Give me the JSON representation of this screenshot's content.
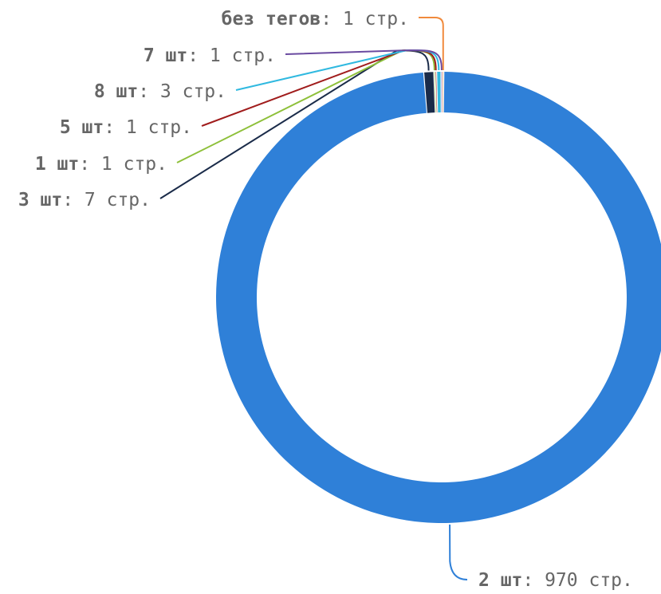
{
  "chart_data": {
    "type": "pie",
    "donut": true,
    "title": "",
    "legend": "none",
    "slices": [
      {
        "name": "2 шт",
        "value": 970,
        "label_value": "970 стр.",
        "color": "#2f80d8"
      },
      {
        "name": "3 шт",
        "value": 7,
        "label_value": "7 стр.",
        "color": "#1a2b49"
      },
      {
        "name": "1 шт",
        "value": 1,
        "label_value": "1 стр.",
        "color": "#8ec03a"
      },
      {
        "name": "5 шт",
        "value": 1,
        "label_value": "1 стр.",
        "color": "#a01c1c"
      },
      {
        "name": "8 шт",
        "value": 3,
        "label_value": "3 стр.",
        "color": "#30b9e0"
      },
      {
        "name": "7 шт",
        "value": 1,
        "label_value": "1 стр.",
        "color": "#6a4aa0"
      },
      {
        "name": "без тегов",
        "value": 1,
        "label_value": "1 стр.",
        "color": "#f08a3c"
      }
    ]
  }
}
